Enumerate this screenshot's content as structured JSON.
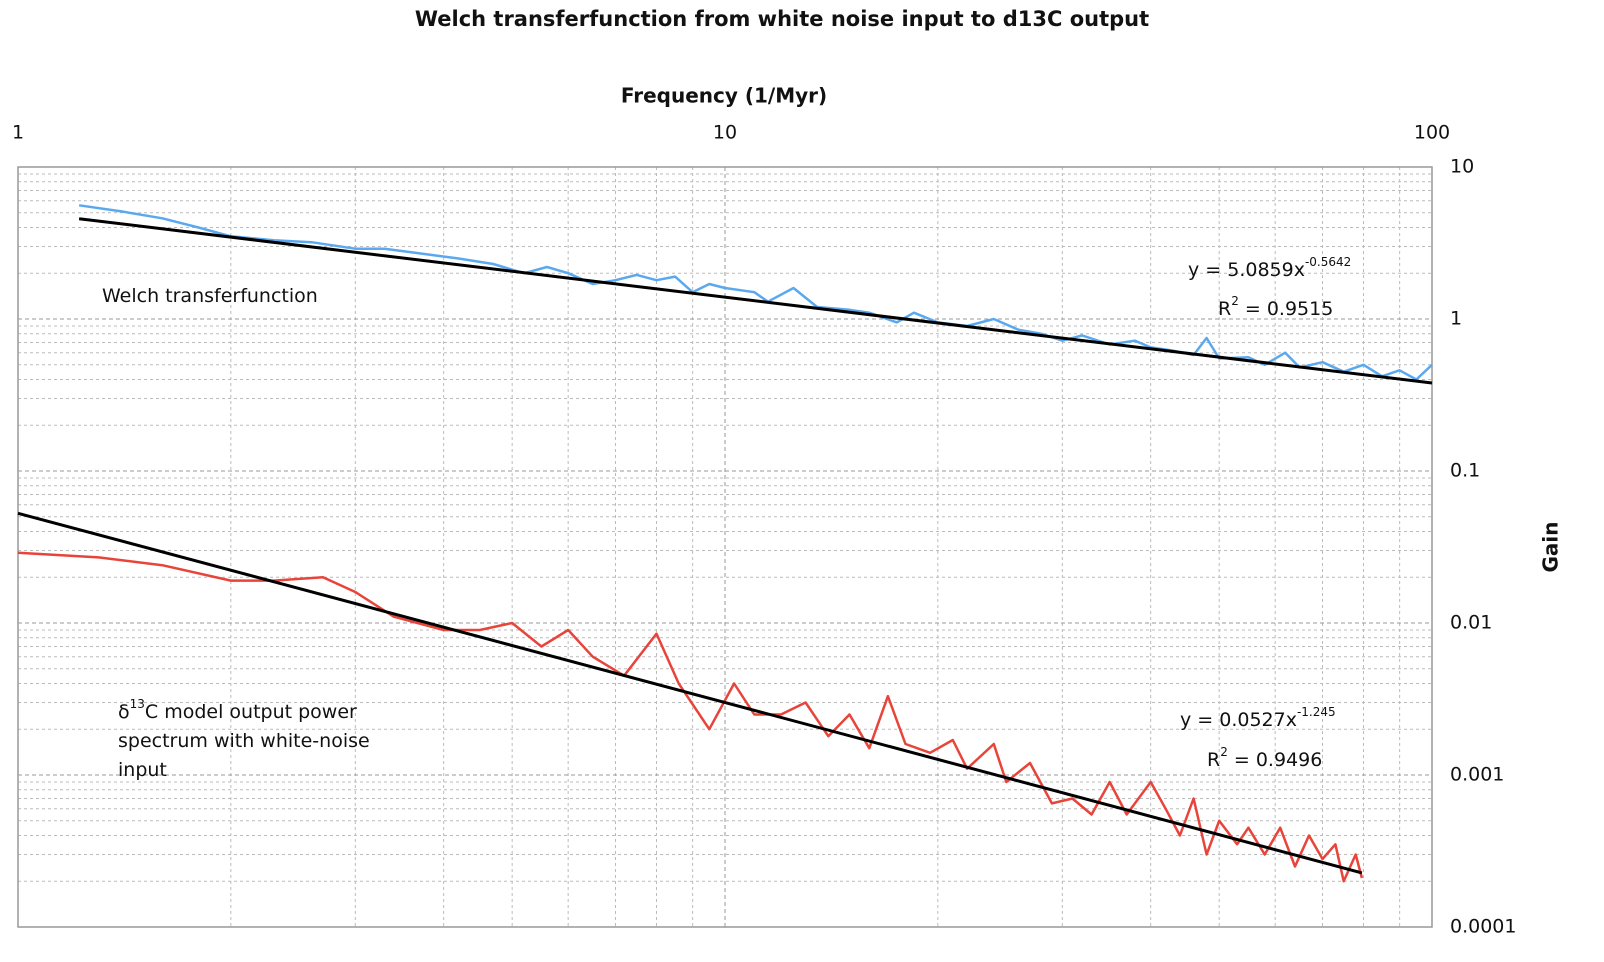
{
  "chart_data": {
    "type": "line",
    "title": "Welch transferfunction from white noise input to d13C output",
    "x_label": "Frequency (1/Myr)",
    "y_label": "Gain",
    "x_log": true,
    "y_log": true,
    "grid": true,
    "x_axis_position": "top",
    "y_axis_position": "right",
    "xlim": [
      1,
      100
    ],
    "xticks": [
      1,
      10,
      100
    ],
    "ylim": [
      0.0001,
      10
    ],
    "yticks": [
      10,
      1,
      0.1,
      0.01,
      0.001,
      0.0001
    ],
    "series": [
      {
        "color": "#5aa9f0",
        "x": [
          1.22,
          1.4,
          1.6,
          1.8,
          2.0,
          2.3,
          2.6,
          3.0,
          3.3,
          3.7,
          4.2,
          4.7,
          5.2,
          5.6,
          6.0,
          6.5,
          7.0,
          7.5,
          8.0,
          8.5,
          9.0,
          9.5,
          10,
          11,
          11.5,
          12.5,
          13.5,
          15,
          16,
          17.5,
          18.5,
          20,
          22,
          24,
          26,
          28,
          30,
          32,
          35,
          38,
          40,
          43,
          46,
          48,
          50,
          55,
          58,
          62,
          65,
          70,
          75,
          80,
          85,
          90,
          95,
          100
        ],
        "values": [
          5.6,
          5.1,
          4.6,
          4.0,
          3.5,
          3.3,
          3.2,
          2.9,
          2.9,
          2.7,
          2.5,
          2.3,
          2.0,
          2.2,
          2.0,
          1.7,
          1.8,
          1.95,
          1.8,
          1.9,
          1.5,
          1.7,
          1.6,
          1.5,
          1.3,
          1.6,
          1.2,
          1.15,
          1.1,
          0.95,
          1.1,
          0.95,
          0.9,
          1.0,
          0.85,
          0.8,
          0.72,
          0.78,
          0.68,
          0.72,
          0.65,
          0.62,
          0.58,
          0.75,
          0.55,
          0.56,
          0.5,
          0.6,
          0.48,
          0.52,
          0.45,
          0.5,
          0.42,
          0.46,
          0.4,
          0.5
        ]
      },
      {
        "color": "#e8443a",
        "x": [
          1,
          1.3,
          1.6,
          2.0,
          2.3,
          2.7,
          3.0,
          3.4,
          4.0,
          4.5,
          5.0,
          5.5,
          6.0,
          6.5,
          7.2,
          8.0,
          8.6,
          9.5,
          10.3,
          11,
          12,
          13,
          14,
          15,
          16,
          17,
          18,
          19.5,
          21,
          22,
          24,
          25,
          27,
          29,
          31,
          33,
          35,
          37,
          40,
          42,
          44,
          46,
          48,
          50,
          53,
          55,
          58,
          61,
          64,
          67,
          70,
          73,
          75,
          78,
          79.6
        ],
        "values": [
          0.029,
          0.027,
          0.024,
          0.019,
          0.019,
          0.02,
          0.016,
          0.011,
          0.009,
          0.009,
          0.01,
          0.007,
          0.009,
          0.006,
          0.0045,
          0.0085,
          0.004,
          0.002,
          0.004,
          0.0025,
          0.0025,
          0.003,
          0.0018,
          0.0025,
          0.0015,
          0.0033,
          0.0016,
          0.0014,
          0.0017,
          0.0011,
          0.0016,
          0.0009,
          0.0012,
          0.00065,
          0.0007,
          0.00055,
          0.0009,
          0.00055,
          0.0009,
          0.0006,
          0.0004,
          0.0007,
          0.0003,
          0.0005,
          0.00035,
          0.00045,
          0.0003,
          0.00045,
          0.00025,
          0.0004,
          0.00028,
          0.00035,
          0.0002,
          0.0003,
          0.00021
        ]
      },
      {
        "color": "#000000",
        "x": [
          1.22,
          100
        ],
        "values": [
          4.57,
          0.379
        ]
      },
      {
        "color": "#000000",
        "x": [
          1,
          79.6
        ],
        "values": [
          0.0527,
          0.000227
        ]
      }
    ],
    "annotations": [
      {
        "lines": [
          [
            {
              "text": "Welch transferfunction"
            }
          ]
        ]
      },
      {
        "lines": [
          [
            {
              "text": "δ"
            },
            {
              "sup": "13"
            },
            {
              "text": "C model output power"
            }
          ],
          [
            {
              "text": "spectrum with white-noise"
            }
          ],
          [
            {
              "text": "input"
            }
          ]
        ]
      },
      {
        "lines": [
          [
            {
              "text": "y = 5.0859x"
            },
            {
              "sup": "-0.5642"
            }
          ],
          [
            {
              "text": "R"
            },
            {
              "sup": "2"
            },
            {
              "text": " = 0.9515"
            }
          ]
        ]
      },
      {
        "lines": [
          [
            {
              "text": "y = 0.0527x"
            },
            {
              "sup": "-1.245"
            }
          ],
          [
            {
              "text": "R"
            },
            {
              "sup": "2"
            },
            {
              "text": " = 0.9496"
            }
          ]
        ]
      }
    ]
  }
}
